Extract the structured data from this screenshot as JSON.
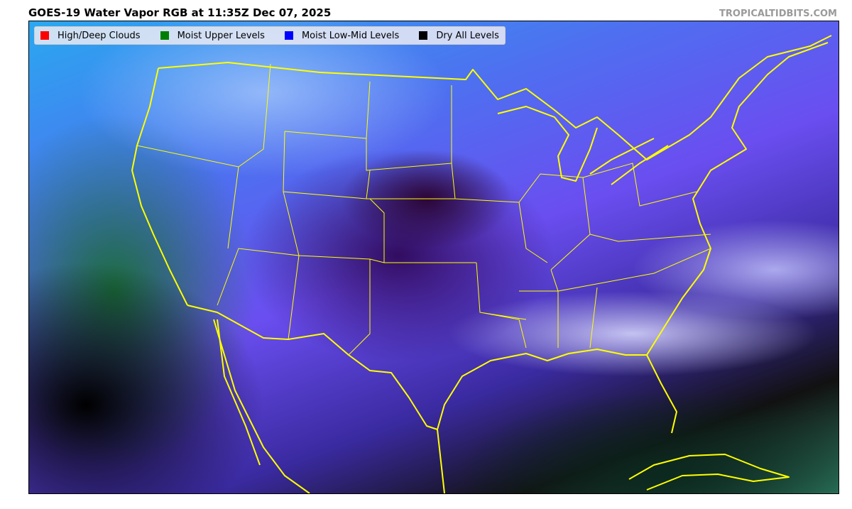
{
  "title": "GOES-19 Water Vapor RGB at 11:35Z Dec 07, 2025",
  "credit": "TROPICALTIDBITS.COM",
  "legend": [
    {
      "label": "High/Deep Clouds",
      "color": "#ff0000"
    },
    {
      "label": "Moist Upper Levels",
      "color": "#008000"
    },
    {
      "label": "Moist Low-Mid Levels",
      "color": "#0000ff"
    },
    {
      "label": "Dry All Levels",
      "color": "#000000"
    }
  ],
  "map": {
    "boundary_color": "#ffff00"
  }
}
